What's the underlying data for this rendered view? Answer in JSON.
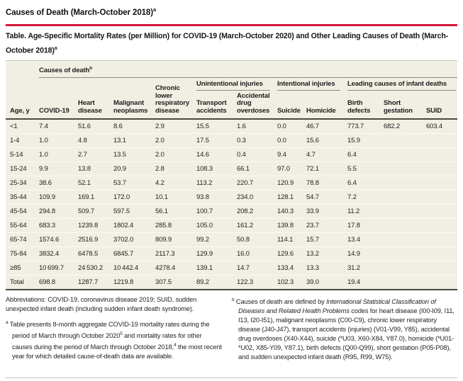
{
  "page": {
    "heading": "Causes of Death (March-October 2018)",
    "heading_sup": "a"
  },
  "colors": {
    "accent_red": "#d6173a",
    "table_background": "#f1efe3"
  },
  "table": {
    "title": "Table. Age-Specific Mortality Rates (per Million) for COVID-19 (March-October 2020) and Other Leading Causes of Death (March-October 2018)",
    "title_sup": "a",
    "top_group_label": "Causes of death",
    "top_group_sup": "b",
    "groups": {
      "unintentional": "Unintentional injuries",
      "intentional": "Intentional injuries",
      "infant": "Leading causes of infant deaths"
    },
    "columns": [
      "Age, y",
      "COVID-19",
      "Heart disease",
      "Malignant neoplasms",
      "Chronic lower respiratory disease",
      "Transport accidents",
      "Accidental drug overdoses",
      "Suicide",
      "Homicide",
      "Birth defects",
      "Short gestation",
      "SUID"
    ],
    "rows": [
      {
        "age": "<1",
        "values": [
          "7.4",
          "51.6",
          "8.6",
          "2.9",
          "15.5",
          "1.6",
          "0.0",
          "46.7",
          "773.7",
          "682.2",
          "603.4"
        ]
      },
      {
        "age": "1-4",
        "values": [
          "1.0",
          "4.8",
          "13.1",
          "2.0",
          "17.5",
          "0.3",
          "0.0",
          "15.6",
          "15.9",
          "",
          ""
        ]
      },
      {
        "age": "5-14",
        "values": [
          "1.0",
          "2.7",
          "13.5",
          "2.0",
          "14.6",
          "0.4",
          "9.4",
          "4.7",
          "6.4",
          "",
          ""
        ]
      },
      {
        "age": "15-24",
        "values": [
          "9.9",
          "13.8",
          "20.9",
          "2.8",
          "108.3",
          "66.1",
          "97.0",
          "72.1",
          "5.5",
          "",
          ""
        ]
      },
      {
        "age": "25-34",
        "values": [
          "38.6",
          "52.1",
          "53.7",
          "4.2",
          "113.2",
          "220.7",
          "120.9",
          "78.8",
          "6.4",
          "",
          ""
        ]
      },
      {
        "age": "35-44",
        "values": [
          "109.9",
          "169.1",
          "172.0",
          "10.1",
          "93.8",
          "234.0",
          "128.1",
          "54.7",
          "7.2",
          "",
          ""
        ]
      },
      {
        "age": "45-54",
        "values": [
          "294.8",
          "509.7",
          "597.5",
          "56.1",
          "100.7",
          "208.2",
          "140.3",
          "33.9",
          "11.2",
          "",
          ""
        ]
      },
      {
        "age": "55-64",
        "values": [
          "683.3",
          "1239.8",
          "1802.4",
          "285.8",
          "105.0",
          "161.2",
          "139.8",
          "23.7",
          "17.8",
          "",
          ""
        ]
      },
      {
        "age": "65-74",
        "values": [
          "1574.6",
          "2516.9",
          "3702.0",
          "809.9",
          "99.2",
          "50.8",
          "114.1",
          "15.7",
          "13.4",
          "",
          ""
        ]
      },
      {
        "age": "75-84",
        "values": [
          "3832.4",
          "6478.5",
          "6845.7",
          "2117.3",
          "129.9",
          "16.0",
          "129.6",
          "13.2",
          "14.9",
          "",
          ""
        ]
      },
      {
        "age": "≥85",
        "values": [
          "10 699.7",
          "24 530.2",
          "10 442.4",
          "4278.4",
          "139.1",
          "14.7",
          "133.4",
          "13.3",
          "31.2",
          "",
          ""
        ]
      },
      {
        "age": "Total",
        "values": [
          "698.8",
          "1287.7",
          "1219.8",
          "307.5",
          "89.2",
          "122.3",
          "102.3",
          "39.0",
          "19.4",
          "",
          ""
        ]
      }
    ]
  },
  "footnotes": {
    "abbreviations": "Abbreviations: COVID-19, coronavirus disease 2019; SUID, sudden unexpected infant death (including sudden infant death syndrome).",
    "a_marker": "a",
    "a_part1": "Table presents 8-month aggregate COVID-19 mortality rates during the period of March through October 2020",
    "a_sup1": "5",
    "a_part2": " and mortality rates for other causes during the period of March through October 2018,",
    "a_sup2": "4",
    "a_part3": " the most recent year for which detailed cause-of-death data are available.",
    "b_marker": "b",
    "b_part1": "Causes of death are defined by ",
    "b_italic": "International Statistical Classification of Diseases and Related Health Problems",
    "b_part2": " codes for heart disease (I00-I09, I11, I13, I20-I51), malignant neoplasms (C00-C9), chronic lower respiratory disease (J40-J47), transport accidents (injuries) (V01-V99, Y85), accidental drug overdoses (X40-X44), suicide (*U03, X60-X84, Y87.0), homicide (*U01-*U02, X85-Y09, Y87.1), birth defects (Q00-Q99), short gestation (P05-P08), and sudden unexpected infant death (R95, R99, W75)."
  }
}
